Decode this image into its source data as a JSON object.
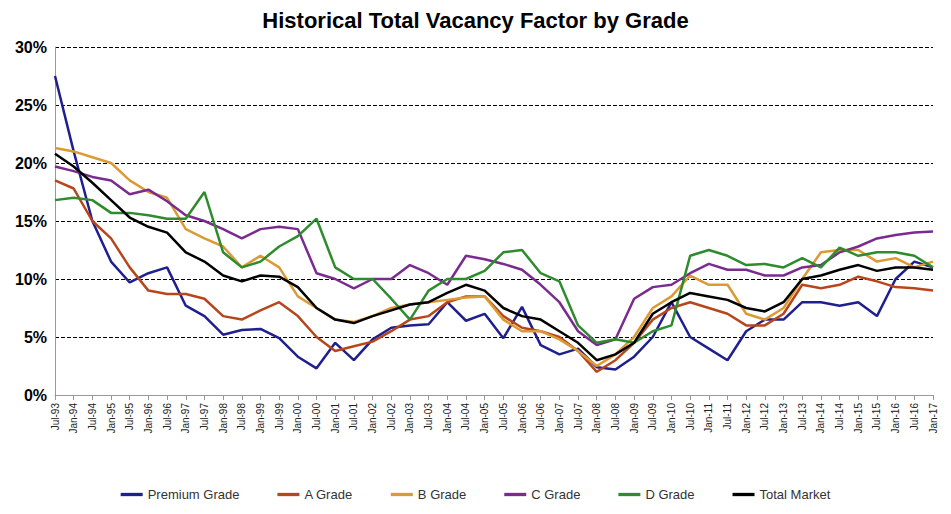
{
  "chart_data": {
    "type": "line",
    "title": "Historical Total Vacancy Factor by Grade",
    "categories": [
      "Jul-93",
      "Jan-94",
      "Jul-94",
      "Jan-95",
      "Jul-95",
      "Jan-96",
      "Jul-96",
      "Jan-97",
      "Jul-97",
      "Jan-98",
      "Jul-98",
      "Jan-99",
      "Jul-99",
      "Jan-00",
      "Jul-00",
      "Jan-01",
      "Jul-01",
      "Jan-02",
      "Jul-02",
      "Jan-03",
      "Jul-03",
      "Jan-04",
      "Jul-04",
      "Jan-05",
      "Jul-05",
      "Jan-06",
      "Jul-06",
      "Jan-07",
      "Jul-07",
      "Jan-08",
      "Jul-08",
      "Jan-09",
      "Jul-09",
      "Jan-10",
      "Jul-10",
      "Jan-11",
      "Jul-11",
      "Jan-12",
      "Jul-12",
      "Jan-13",
      "Jul-13",
      "Jan-14",
      "Jul-14",
      "Jan-15",
      "Jul-15",
      "Jan-16",
      "Jul-16",
      "Jan-17"
    ],
    "series": [
      {
        "name": "Premium Grade",
        "color": "#1f1f8f",
        "values": [
          27.5,
          21,
          15,
          11.5,
          9.7,
          10.5,
          11,
          7.7,
          6.8,
          5.2,
          5.6,
          5.7,
          4.9,
          3.3,
          2.3,
          4.5,
          3.0,
          4.8,
          5.8,
          6.0,
          6.1,
          8.0,
          6.4,
          7.0,
          4.9,
          7.6,
          4.3,
          3.5,
          4.0,
          2.4,
          2.2,
          3.3,
          5.0,
          8.0,
          5.0,
          4.0,
          3.0,
          5.5,
          6.5,
          6.5,
          8.0,
          8.0,
          7.7,
          8.0,
          6.8,
          10.0,
          11.5,
          11.0
        ]
      },
      {
        "name": "A Grade",
        "color": "#b8461c",
        "values": [
          18.5,
          17.8,
          15,
          13.5,
          11,
          9,
          8.7,
          8.7,
          8.3,
          6.8,
          6.5,
          7.3,
          8.0,
          6.8,
          5.0,
          3.8,
          4.2,
          4.6,
          5.5,
          6.5,
          6.8,
          8.0,
          8.5,
          8.5,
          6.8,
          5.8,
          5.5,
          5.0,
          3.8,
          2.0,
          3.0,
          4.5,
          6.5,
          7.5,
          8.0,
          7.5,
          7.0,
          6.0,
          6.0,
          7.0,
          9.5,
          9.2,
          9.5,
          10.2,
          9.8,
          9.3,
          9.2,
          9.0
        ]
      },
      {
        "name": "B Grade",
        "color": "#dc9a35",
        "values": [
          21.3,
          21.0,
          20.5,
          20.0,
          18.5,
          17.5,
          17.0,
          14.3,
          13.5,
          12.8,
          11.0,
          12.0,
          11.0,
          8.5,
          7.5,
          6.5,
          6.3,
          6.8,
          7.5,
          7.8,
          8.0,
          8.2,
          8.4,
          8.5,
          6.5,
          5.5,
          5.5,
          4.8,
          3.8,
          2.5,
          3.5,
          5.0,
          7.5,
          8.5,
          10.3,
          9.5,
          9.5,
          7.0,
          6.5,
          7.5,
          10.0,
          12.3,
          12.5,
          12.5,
          11.5,
          11.8,
          11.0,
          11.5
        ]
      },
      {
        "name": "C Grade",
        "color": "#7a2c8e",
        "values": [
          19.7,
          19.3,
          18.8,
          18.5,
          17.3,
          17.7,
          16.7,
          15.5,
          15.0,
          14.3,
          13.5,
          14.3,
          14.5,
          14.3,
          10.5,
          10.0,
          9.2,
          10.0,
          10.0,
          11.2,
          10.5,
          9.5,
          12.0,
          11.7,
          11.3,
          10.8,
          9.5,
          8.0,
          5.5,
          4.3,
          4.8,
          8.3,
          9.3,
          9.5,
          10.5,
          11.3,
          10.8,
          10.8,
          10.3,
          10.3,
          11.0,
          11.2,
          12.3,
          12.8,
          13.5,
          13.8,
          14.0,
          14.1
        ]
      },
      {
        "name": "D Grade",
        "color": "#2e8b2e",
        "values": [
          16.8,
          17.0,
          16.8,
          15.7,
          15.7,
          15.5,
          15.2,
          15.2,
          17.5,
          12.3,
          11.0,
          11.5,
          12.8,
          13.7,
          15.2,
          11.0,
          10.0,
          10.0,
          8.3,
          6.5,
          9.0,
          10.0,
          10.0,
          10.7,
          12.3,
          12.5,
          10.5,
          9.8,
          6.0,
          4.5,
          4.8,
          4.5,
          5.5,
          6.0,
          12.0,
          12.5,
          12.0,
          11.2,
          11.3,
          11.0,
          11.8,
          11.0,
          12.7,
          12.0,
          12.3,
          12.3,
          12.0,
          11.0
        ]
      },
      {
        "name": "Total Market",
        "color": "#000000",
        "values": [
          20.8,
          19.7,
          18.3,
          16.8,
          15.3,
          14.5,
          14.0,
          12.3,
          11.5,
          10.3,
          9.8,
          10.3,
          10.2,
          9.3,
          7.5,
          6.5,
          6.2,
          6.8,
          7.3,
          7.8,
          8.0,
          8.8,
          9.5,
          9.0,
          7.5,
          6.8,
          6.5,
          5.5,
          4.5,
          3.0,
          3.5,
          4.5,
          7.0,
          8.0,
          8.8,
          8.5,
          8.2,
          7.5,
          7.2,
          8.0,
          10.0,
          10.3,
          10.8,
          11.2,
          10.7,
          11.0,
          11.0,
          10.8
        ]
      }
    ],
    "ylim": [
      0,
      30
    ],
    "yticks": [
      {
        "value": 0,
        "label": "0%"
      },
      {
        "value": 5,
        "label": "5%"
      },
      {
        "value": 10,
        "label": "10%"
      },
      {
        "value": 15,
        "label": "15%"
      },
      {
        "value": 20,
        "label": "20%"
      },
      {
        "value": 25,
        "label": "25%"
      },
      {
        "value": 30,
        "label": "30%"
      }
    ],
    "grid": true,
    "legend": "bottom"
  }
}
